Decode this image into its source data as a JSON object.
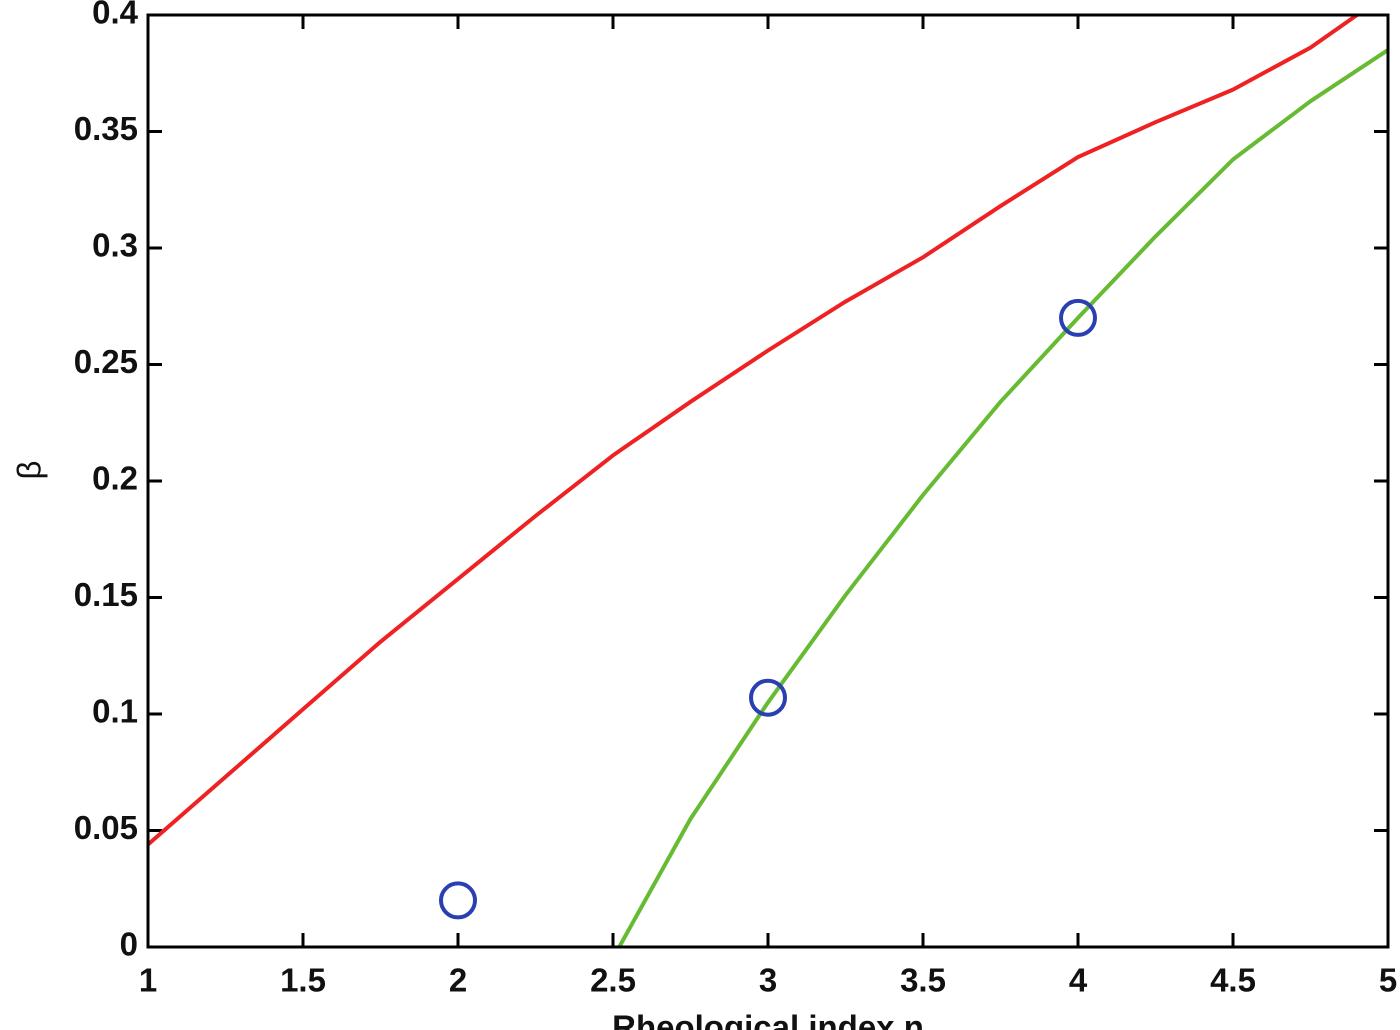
{
  "chart_data": {
    "type": "line",
    "xlabel": "Rheological index n",
    "ylabel": "β",
    "xlim": [
      1,
      5
    ],
    "ylim": [
      0,
      0.4
    ],
    "xticks": [
      1,
      1.5,
      2,
      2.5,
      3,
      3.5,
      4,
      4.5,
      5
    ],
    "yticks": [
      0,
      0.05,
      0.1,
      0.15,
      0.2,
      0.25,
      0.3,
      0.35,
      0.4
    ],
    "series": [
      {
        "mode": "line",
        "color": "#ee2222",
        "x": [
          1,
          1.25,
          1.5,
          1.75,
          2,
          2.25,
          2.5,
          2.75,
          3,
          3.25,
          3.5,
          3.75,
          4,
          4.25,
          4.5,
          4.75,
          4.9
        ],
        "values": [
          0.044,
          0.073,
          0.102,
          0.131,
          0.158,
          0.185,
          0.211,
          0.234,
          0.256,
          0.277,
          0.296,
          0.318,
          0.339,
          0.354,
          0.368,
          0.386,
          0.4
        ]
      },
      {
        "mode": "line",
        "color": "#66bb33",
        "x": [
          2.52,
          2.75,
          3,
          3.25,
          3.5,
          3.75,
          4,
          4.25,
          4.5,
          4.75,
          5
        ],
        "values": [
          0,
          0.055,
          0.105,
          0.151,
          0.194,
          0.234,
          0.27,
          0.305,
          0.338,
          0.363,
          0.385
        ]
      },
      {
        "mode": "markers",
        "color": "#2a3fb0",
        "x": [
          2,
          3,
          4
        ],
        "values": [
          0.02,
          0.107,
          0.27
        ]
      }
    ]
  }
}
